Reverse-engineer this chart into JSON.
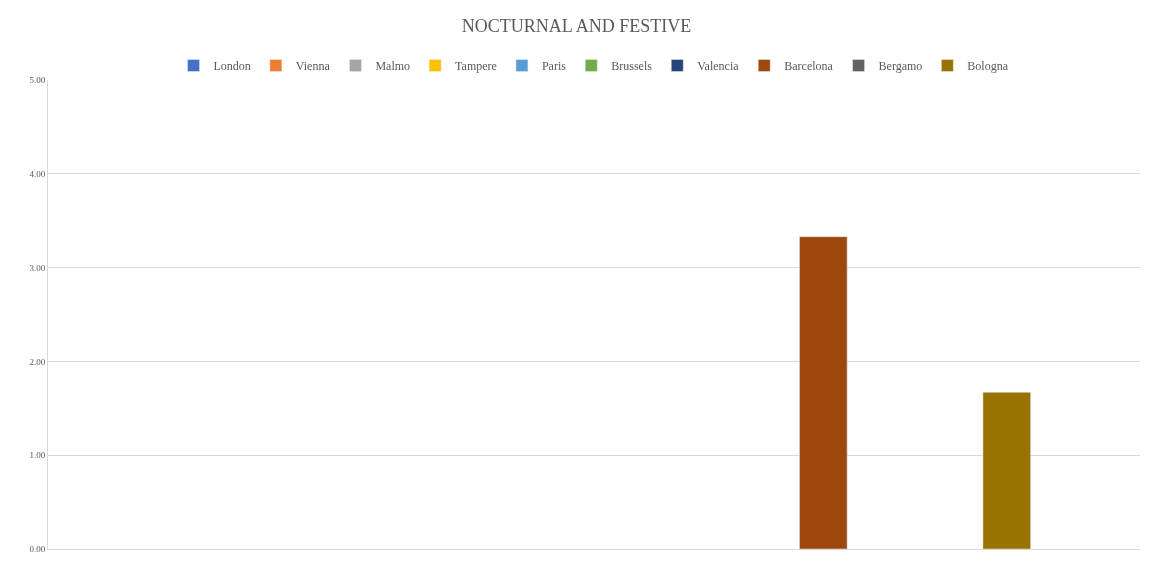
{
  "chart_data": {
    "type": "bar",
    "title": "NOCTURNAL AND FESTIVE",
    "categories": [
      null
    ],
    "series": [
      {
        "name": "London",
        "color": "#4472c4",
        "values": [
          null
        ]
      },
      {
        "name": "Vienna",
        "color": "#ed7d31",
        "values": [
          null
        ]
      },
      {
        "name": "Malmo",
        "color": "#a5a5a5",
        "values": [
          null
        ]
      },
      {
        "name": "Tampere",
        "color": "#ffc000",
        "values": [
          null
        ]
      },
      {
        "name": "Paris",
        "color": "#5b9bd5",
        "values": [
          null
        ]
      },
      {
        "name": "Brussels",
        "color": "#70ad47",
        "values": [
          null
        ]
      },
      {
        "name": "Valencia",
        "color": "#264478",
        "values": [
          null
        ]
      },
      {
        "name": "Barcelona",
        "color": "#9e480e",
        "values": [
          3.33
        ]
      },
      {
        "name": "Bergamo",
        "color": "#636363",
        "values": [
          null
        ]
      },
      {
        "name": "Bologna",
        "color": "#997300",
        "values": [
          1.67
        ]
      }
    ],
    "ylim": [
      0,
      5
    ],
    "yticks": [
      {
        "value": 0,
        "label": "0.00"
      },
      {
        "value": 1,
        "label": "1.00"
      },
      {
        "value": 2,
        "label": "2.00"
      },
      {
        "value": 3,
        "label": "3.00"
      },
      {
        "value": 4,
        "label": "4.00"
      },
      {
        "value": 5,
        "label": "5.00"
      }
    ],
    "grid": "y",
    "legend": "top"
  }
}
